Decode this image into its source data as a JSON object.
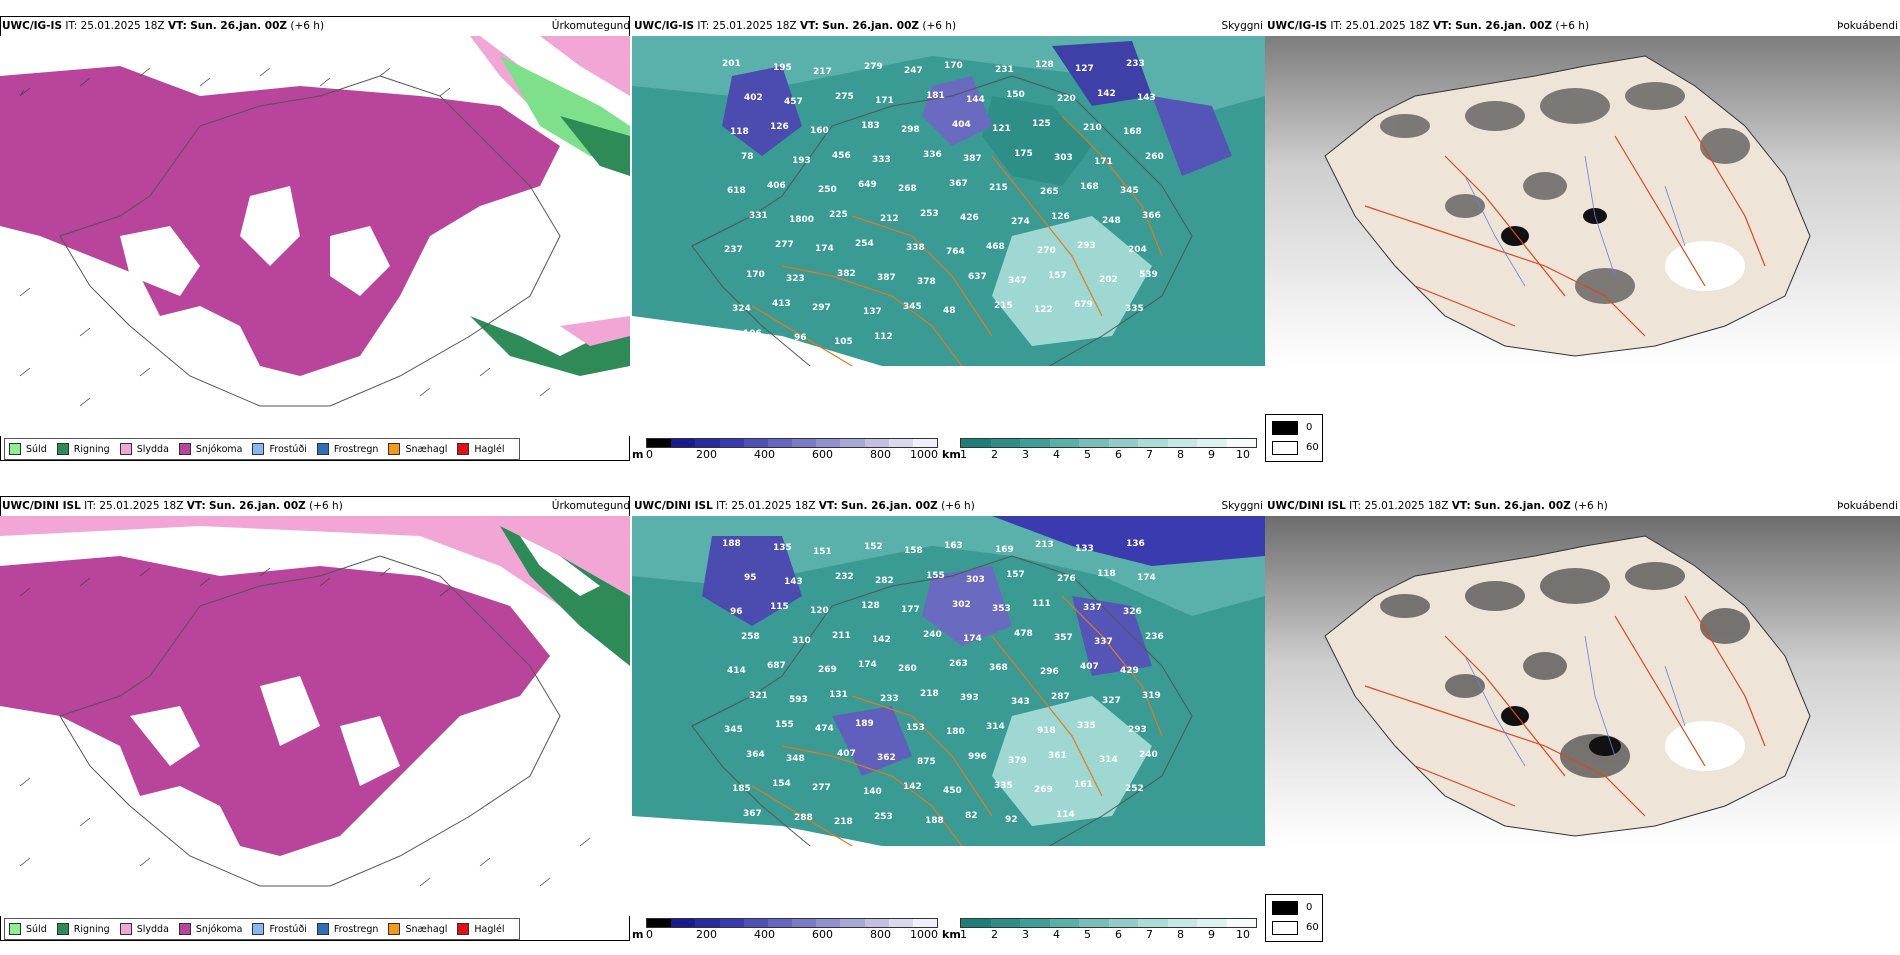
{
  "rows": [
    {
      "model": "UWC/IG-IS",
      "it_label": "IT:",
      "it_value": "25.01.2025 18Z",
      "vt_label": "VT:",
      "vt_value": "Sun. 26.jan. 00Z",
      "lead": "(+6 h)",
      "cloud_labels": [
        "201",
        "195",
        "217",
        "279",
        "247",
        "170",
        "231",
        "128",
        "127",
        "233",
        "402",
        "457",
        "275",
        "171",
        "181",
        "144",
        "150",
        "220",
        "142",
        "143",
        "118",
        "126",
        "160",
        "183",
        "298",
        "404",
        "121",
        "125",
        "210",
        "168",
        "78",
        "193",
        "456",
        "333",
        "336",
        "387",
        "175",
        "303",
        "171",
        "260",
        "618",
        "406",
        "250",
        "649",
        "268",
        "367",
        "215",
        "265",
        "168",
        "345",
        "331",
        "1800",
        "225",
        "212",
        "253",
        "426",
        "274",
        "126",
        "248",
        "366",
        "237",
        "277",
        "174",
        "254",
        "338",
        "764",
        "468",
        "270",
        "293",
        "204",
        "170",
        "323",
        "382",
        "387",
        "378",
        "637",
        "347",
        "157",
        "202",
        "539",
        "324",
        "413",
        "297",
        "137",
        "345",
        "48",
        "215",
        "122",
        "679",
        "335",
        "106",
        "96",
        "105",
        "112"
      ]
    },
    {
      "model": "UWC/DINI ISL",
      "it_label": "IT:",
      "it_value": "25.01.2025 18Z",
      "vt_label": "VT:",
      "vt_value": "Sun. 26.jan. 00Z",
      "lead": "(+6 h)",
      "cloud_labels": [
        "188",
        "135",
        "151",
        "152",
        "158",
        "163",
        "169",
        "213",
        "133",
        "136",
        "95",
        "143",
        "232",
        "282",
        "155",
        "303",
        "157",
        "276",
        "118",
        "174",
        "96",
        "115",
        "120",
        "128",
        "177",
        "302",
        "353",
        "111",
        "337",
        "326",
        "258",
        "310",
        "211",
        "142",
        "240",
        "174",
        "478",
        "357",
        "337",
        "236",
        "414",
        "687",
        "269",
        "174",
        "260",
        "263",
        "368",
        "296",
        "407",
        "429",
        "321",
        "593",
        "131",
        "233",
        "218",
        "393",
        "343",
        "287",
        "327",
        "319",
        "345",
        "155",
        "474",
        "189",
        "153",
        "180",
        "314",
        "918",
        "335",
        "293",
        "364",
        "348",
        "407",
        "362",
        "875",
        "996",
        "379",
        "361",
        "314",
        "240",
        "185",
        "154",
        "277",
        "140",
        "142",
        "450",
        "335",
        "269",
        "161",
        "252",
        "367",
        "288",
        "218",
        "253",
        "188",
        "82",
        "92",
        "114"
      ]
    }
  ],
  "panel_names": {
    "precip": "Úrkomutegund",
    "cloud": "Skyggni",
    "sat": "Þokuábendi"
  },
  "precip_legend": [
    {
      "label": "Súld",
      "color": "#90ee90"
    },
    {
      "label": "Rigning",
      "color": "#2e8b57"
    },
    {
      "label": "Slydda",
      "color": "#f2a6d6"
    },
    {
      "label": "Snjókoma",
      "color": "#b8449b"
    },
    {
      "label": "Frostúði",
      "color": "#87b6f0"
    },
    {
      "label": "Frostregn",
      "color": "#2f6fb7"
    },
    {
      "label": "Snæhagl",
      "color": "#f19a1a"
    },
    {
      "label": "Haglél",
      "color": "#e01010"
    }
  ],
  "height_scale": {
    "unit": "m",
    "ticks": [
      "0",
      "200",
      "400",
      "600",
      "800",
      "1000"
    ]
  },
  "km_scale": {
    "unit": "km",
    "ticks": [
      "1",
      "2",
      "3",
      "4",
      "5",
      "6",
      "7",
      "8",
      "9",
      "10"
    ]
  },
  "sat_legend": [
    "0",
    "60"
  ]
}
